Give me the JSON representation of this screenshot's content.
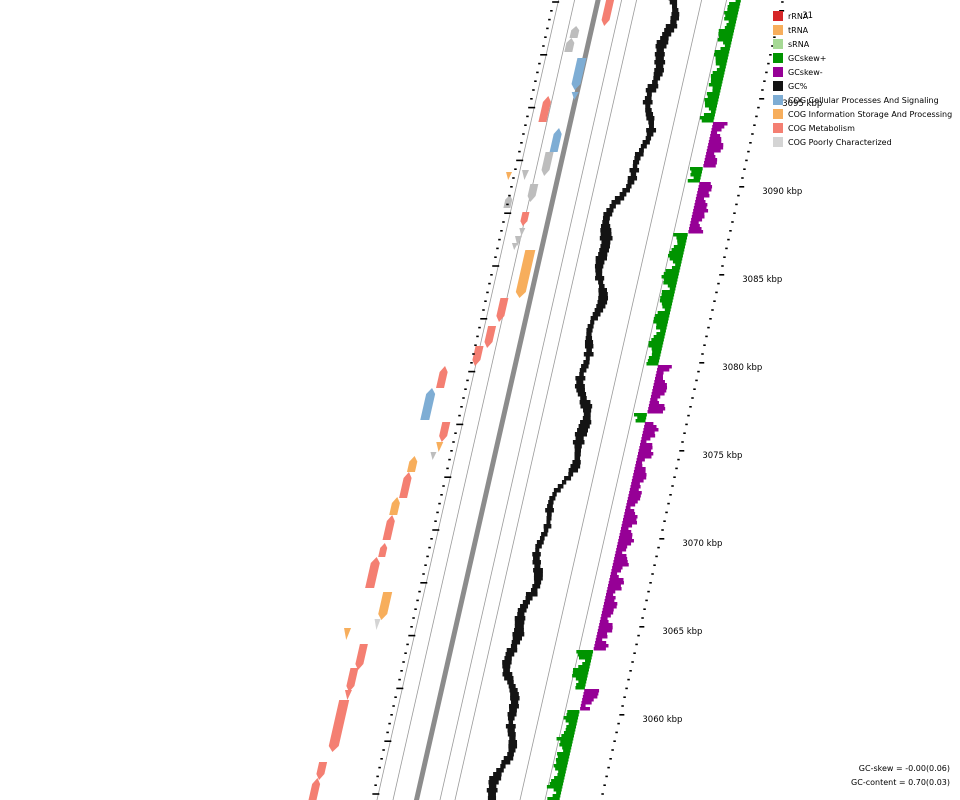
{
  "legend": [
    {
      "label": "rRNA",
      "color": "#d62728"
    },
    {
      "label": "tRNA",
      "color": "#f7ae5c"
    },
    {
      "label": "sRNA",
      "color": "#a6d995"
    },
    {
      "label": "GCskew+",
      "color": "#009400"
    },
    {
      "label": "GCskew-",
      "color": "#960096"
    },
    {
      "label": "GC%",
      "color": "#141414"
    },
    {
      "label": "COG Cellular Processes And Signaling",
      "color": "#7eadd4"
    },
    {
      "label": "COG Information Storage And Processing",
      "color": "#f7ae5c"
    },
    {
      "label": "COG Metabolism",
      "color": "#f47f72"
    },
    {
      "label": "COG Poorly Characterized",
      "color": "#d4d4d4"
    }
  ],
  "scale_labels": [
    "3060 kbp",
    "3065 kbp",
    "3070 kbp",
    "3075 kbp",
    "3080 kbp",
    "3085 kbp",
    "3090 kbp",
    "3095 kbp",
    "31"
  ],
  "stats": {
    "gc_skew": "GC-skew = -0.00(0.06)",
    "gc_content": "GC-content = 0.70(0.03)"
  },
  "colors": {
    "backbone": "#8c8c8c",
    "track_line": "#9a9a9a",
    "gc_content": "#141414",
    "gc_skew_pos": "#009400",
    "gc_skew_neg": "#960096"
  }
}
